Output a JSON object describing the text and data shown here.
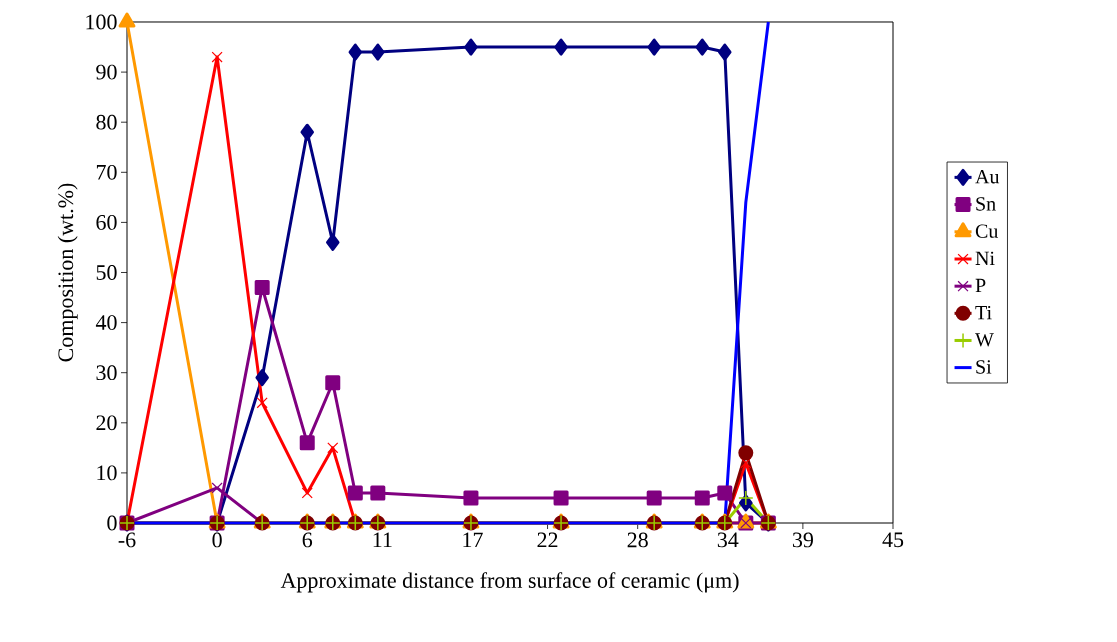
{
  "chart_data": {
    "type": "line",
    "xlabel": "Approximate distance from surface of ceramic (μm)",
    "ylabel": "Composition (wt.%)",
    "x": [
      -6,
      0,
      3.0,
      6.0,
      7.7,
      9.2,
      10.7,
      16.9,
      22.9,
      29.1,
      32.3,
      33.8,
      35.2,
      36.7
    ],
    "xlim": [
      -6,
      45
    ],
    "ylim": [
      0,
      100
    ],
    "xticks": [
      -6,
      0,
      6,
      11,
      17,
      22,
      28,
      34,
      39,
      45
    ],
    "yticks": [
      0,
      10,
      20,
      30,
      40,
      50,
      60,
      70,
      80,
      90,
      100
    ],
    "legend": "right",
    "grid": false,
    "series": [
      {
        "name": "Au",
        "color": "#000080",
        "marker": "diamond",
        "values": [
          0,
          0,
          29,
          78,
          56,
          94,
          94,
          95,
          95,
          95,
          95,
          94,
          4,
          0
        ]
      },
      {
        "name": "Sn",
        "color": "#800080",
        "marker": "square",
        "values": [
          0,
          0,
          47,
          16,
          28,
          6,
          6,
          5,
          5,
          5,
          5,
          6,
          0,
          0
        ]
      },
      {
        "name": "Cu",
        "color": "#ff9900",
        "marker": "triangle",
        "values": [
          100,
          0,
          0,
          0,
          0,
          0,
          0,
          0,
          0,
          0,
          0,
          0,
          0,
          0
        ]
      },
      {
        "name": "Ni",
        "color": "#ff0000",
        "marker": "cross",
        "values": [
          0,
          93,
          24,
          6,
          15,
          0,
          0,
          0,
          0,
          0,
          0,
          0,
          12,
          0
        ]
      },
      {
        "name": "P",
        "color": "#800080",
        "marker": "cross",
        "values": [
          0,
          7,
          0,
          null,
          null,
          null,
          null,
          null,
          null,
          null,
          null,
          0,
          0,
          0
        ]
      },
      {
        "name": "Ti",
        "color": "#800000",
        "marker": "circle",
        "values": [
          0,
          0,
          0,
          0,
          0,
          0,
          0,
          0,
          0,
          0,
          0,
          0,
          14,
          0
        ]
      },
      {
        "name": "W",
        "color": "#99cc00",
        "marker": "plus",
        "values": [
          0,
          0,
          0,
          0,
          0,
          0,
          0,
          0,
          0,
          0,
          0,
          0,
          5,
          0
        ]
      },
      {
        "name": "Si",
        "color": "#0000ff",
        "marker": "none",
        "values": [
          0,
          0,
          0,
          0,
          0,
          0,
          0,
          0,
          0,
          0,
          0,
          0,
          64,
          100
        ]
      }
    ]
  }
}
